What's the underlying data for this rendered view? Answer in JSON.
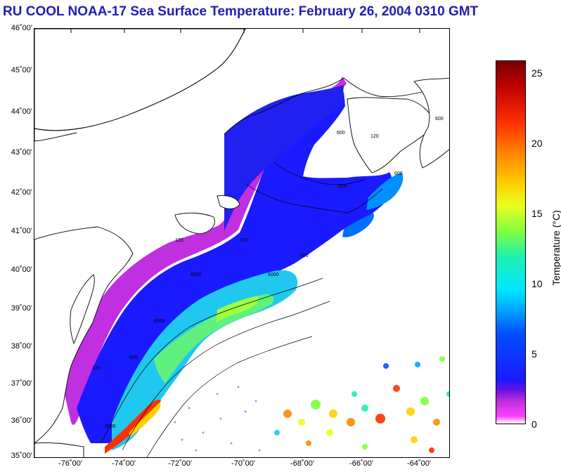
{
  "title": "RU COOL  NOAA-17  Sea Surface Temperature:  February 26, 2004 0310 GMT",
  "map": {
    "lat_labels": [
      "46˚00'",
      "45˚00'",
      "44˚00'",
      "43˚00'",
      "42˚00'",
      "41˚00'",
      "40˚00'",
      "39˚00'",
      "38˚00'",
      "37˚00'",
      "36˚00'",
      "35˚00'"
    ],
    "lon_labels": [
      "-76˚00'",
      "-74˚00'",
      "-72˚00'",
      "-70˚00'",
      "-68˚00'",
      "-66˚00'",
      "-64˚00'"
    ],
    "contour_labels": [
      "6000",
      "6000",
      "6000",
      "6000",
      "600",
      "600",
      "600",
      "600",
      "600",
      "600",
      "120",
      "120",
      "120",
      "120"
    ]
  },
  "colorbar": {
    "label": "Temperature (°C)",
    "ticks": [
      "25",
      "20",
      "15",
      "10",
      "5",
      "0"
    ],
    "tick_values": [
      25,
      20,
      15,
      10,
      5,
      0
    ],
    "range": [
      0,
      26
    ]
  },
  "colors": {
    "title": "#1e1eb4",
    "cold": "#ff40ff",
    "mid": "#1a1aff",
    "warm": "#ff3000"
  }
}
